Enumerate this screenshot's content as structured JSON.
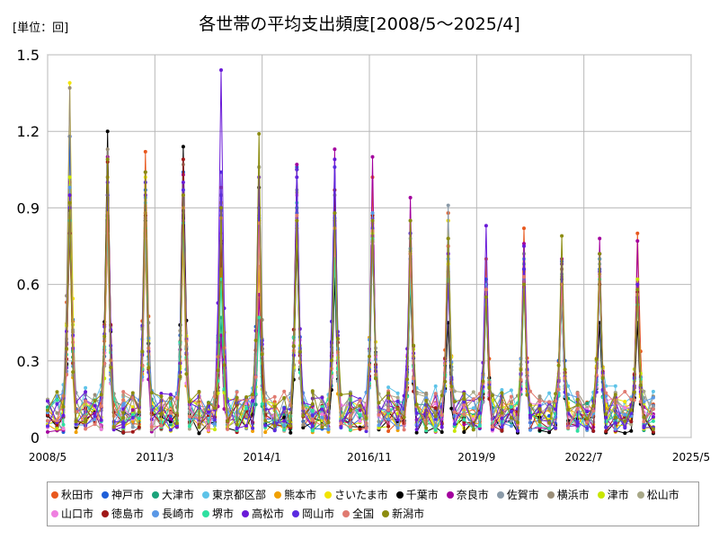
{
  "unit_label": "[単位：回]",
  "chart_data": {
    "type": "line",
    "title": "各世帯の平均支出頻度[2008/5～2025/4]",
    "xlabel": "",
    "ylabel": "",
    "ylim": [
      0,
      1.5
    ],
    "yticks": [
      "0",
      "0.3",
      "0.6",
      "0.9",
      "1.2",
      "1.5"
    ],
    "xticks": [
      "2008/5",
      "2011/3",
      "2014/1",
      "2016/11",
      "2019/9",
      "2022/7",
      "2025/5"
    ],
    "x_range": [
      "2008/5",
      "2025/5"
    ],
    "grid": true,
    "legend_position": "bottom",
    "peak_month": "12",
    "series": [
      {
        "name": "秋田市",
        "color": "#e8581e",
        "peaks": [
          1.18,
          0.95,
          1.12,
          0.95,
          0.98,
          0.85,
          0.85,
          0.85,
          1.02,
          0.74,
          0.88,
          0.7,
          0.82,
          0.66,
          0.7,
          0.8
        ],
        "base": 0.06
      },
      {
        "name": "神戸市",
        "color": "#1f5fd8",
        "peaks": [
          1.18,
          1.02,
          0.97,
          1.04,
          0.9,
          1.06,
          1.06,
          0.88,
          0.86,
          0.7,
          0.7,
          0.62,
          0.66,
          0.69,
          0.66,
          0.55
        ],
        "base": 0.05
      },
      {
        "name": "大津市",
        "color": "#1aa37a",
        "peaks": [
          0.82,
          0.8,
          0.8,
          0.8,
          0.47,
          0.46,
          0.9,
          0.72,
          0.78,
          0.63,
          0.65,
          0.55,
          0.6,
          0.55,
          0.6,
          0.55
        ],
        "base": 0.06
      },
      {
        "name": "東京都区部",
        "color": "#5ec3e8",
        "peaks": [
          0.88,
          0.85,
          0.92,
          0.86,
          0.87,
          0.86,
          0.83,
          0.8,
          0.75,
          0.7,
          0.7,
          0.6,
          0.62,
          0.6,
          0.64,
          0.58
        ],
        "base": 0.08
      },
      {
        "name": "熊本市",
        "color": "#f0a000",
        "peaks": [
          0.83,
          0.75,
          0.72,
          0.75,
          0.75,
          0.67,
          0.82,
          0.67,
          0.88,
          0.62,
          0.85,
          0.58,
          0.65,
          0.6,
          0.72,
          0.55
        ],
        "base": 0.05
      },
      {
        "name": "さいたま市",
        "color": "#f2e400",
        "peaks": [
          1.39,
          1.02,
          1.02,
          0.8,
          0.92,
          0.85,
          0.88,
          0.82,
          0.84,
          0.73,
          0.85,
          0.6,
          0.6,
          0.68,
          0.7,
          0.6
        ],
        "base": 0.06
      },
      {
        "name": "千葉市",
        "color": "#000000",
        "peaks": [
          0.89,
          1.2,
          0.85,
          1.14,
          0.76,
          0.98,
          0.77,
          0.62,
          0.78,
          0.6,
          0.45,
          0.6,
          0.68,
          0.54,
          0.45,
          0.45
        ],
        "base": 0.04
      },
      {
        "name": "奈良市",
        "color": "#a3009e",
        "peaks": [
          1.0,
          1.1,
          0.86,
          1.03,
          0.4,
          0.56,
          1.07,
          1.13,
          1.1,
          0.94,
          0.62,
          0.55,
          0.76,
          0.7,
          0.78,
          0.77
        ],
        "base": 0.05
      },
      {
        "name": "佐賀市",
        "color": "#8a9aa8",
        "peaks": [
          0.95,
          0.95,
          0.88,
          0.85,
          0.95,
          0.87,
          0.97,
          0.86,
          0.88,
          0.78,
          0.91,
          0.55,
          0.68,
          0.63,
          0.68,
          0.57
        ],
        "base": 0.07
      },
      {
        "name": "横浜市",
        "color": "#9a8e78",
        "peaks": [
          1.37,
          1.13,
          1.04,
          1.07,
          0.9,
          1.06,
          0.88,
          0.95,
          0.77,
          0.73,
          0.78,
          0.55,
          0.72,
          0.66,
          0.7,
          0.6
        ],
        "base": 0.07
      },
      {
        "name": "津市",
        "color": "#c8e600",
        "peaks": [
          1.02,
          0.86,
          0.88,
          0.9,
          0.66,
          0.78,
          0.82,
          0.85,
          0.8,
          0.8,
          0.68,
          0.58,
          0.7,
          0.62,
          0.7,
          0.62
        ],
        "base": 0.06
      },
      {
        "name": "松山市",
        "color": "#a8a888",
        "peaks": [
          0.95,
          1.09,
          1.04,
          0.88,
          0.9,
          1.06,
          0.96,
          0.86,
          0.87,
          0.85,
          0.78,
          0.56,
          0.6,
          0.6,
          0.72,
          0.6
        ],
        "base": 0.07
      },
      {
        "name": "山口市",
        "color": "#ef7fe0",
        "peaks": [
          0.9,
          0.8,
          0.78,
          0.85,
          0.8,
          0.8,
          0.95,
          0.75,
          0.76,
          0.72,
          0.72,
          0.55,
          0.6,
          0.56,
          0.63,
          0.57
        ],
        "base": 0.06
      },
      {
        "name": "徳島市",
        "color": "#a01818",
        "peaks": [
          0.8,
          1.08,
          0.87,
          1.09,
          0.77,
          0.9,
          1.05,
          0.97,
          0.87,
          0.72,
          0.75,
          0.56,
          0.66,
          0.6,
          0.6,
          0.57
        ],
        "base": 0.05
      },
      {
        "name": "長崎市",
        "color": "#5a98e6",
        "peaks": [
          0.98,
          0.88,
          0.94,
          0.97,
          0.89,
          0.86,
          0.88,
          0.86,
          0.88,
          0.74,
          0.7,
          0.6,
          0.7,
          0.64,
          0.7,
          0.6
        ],
        "base": 0.07
      },
      {
        "name": "堺市",
        "color": "#2ee0a0",
        "peaks": [
          0.85,
          0.8,
          0.82,
          0.84,
          0.62,
          0.47,
          0.92,
          0.7,
          0.78,
          0.62,
          0.62,
          0.52,
          0.58,
          0.56,
          0.62,
          0.52
        ],
        "base": 0.06
      },
      {
        "name": "高松市",
        "color": "#6a1ad8",
        "peaks": [
          0.95,
          1.0,
          0.95,
          1.0,
          1.44,
          1.02,
          1.02,
          1.09,
          0.85,
          0.8,
          0.72,
          0.83,
          0.75,
          0.68,
          0.72,
          0.6
        ],
        "base": 0.07
      },
      {
        "name": "岡山市",
        "color": "#5a2be0",
        "peaks": [
          0.9,
          0.95,
          1.0,
          0.97,
          1.04,
          0.9,
          1.05,
          1.06,
          0.82,
          0.8,
          0.6,
          0.55,
          0.66,
          0.62,
          0.65,
          0.56
        ],
        "base": 0.06
      },
      {
        "name": "全国",
        "color": "#e07a70",
        "peaks": [
          0.92,
          0.88,
          0.88,
          0.9,
          0.86,
          0.84,
          0.87,
          0.82,
          0.81,
          0.72,
          0.75,
          0.58,
          0.63,
          0.6,
          0.64,
          0.56
        ],
        "base": 0.07
      },
      {
        "name": "新潟市",
        "color": "#8c8c10",
        "peaks": [
          0.92,
          1.09,
          1.04,
          0.95,
          0.9,
          1.19,
          0.85,
          0.88,
          0.85,
          0.85,
          0.78,
          0.55,
          0.6,
          0.79,
          0.72,
          0.58
        ],
        "base": 0.07
      }
    ]
  }
}
